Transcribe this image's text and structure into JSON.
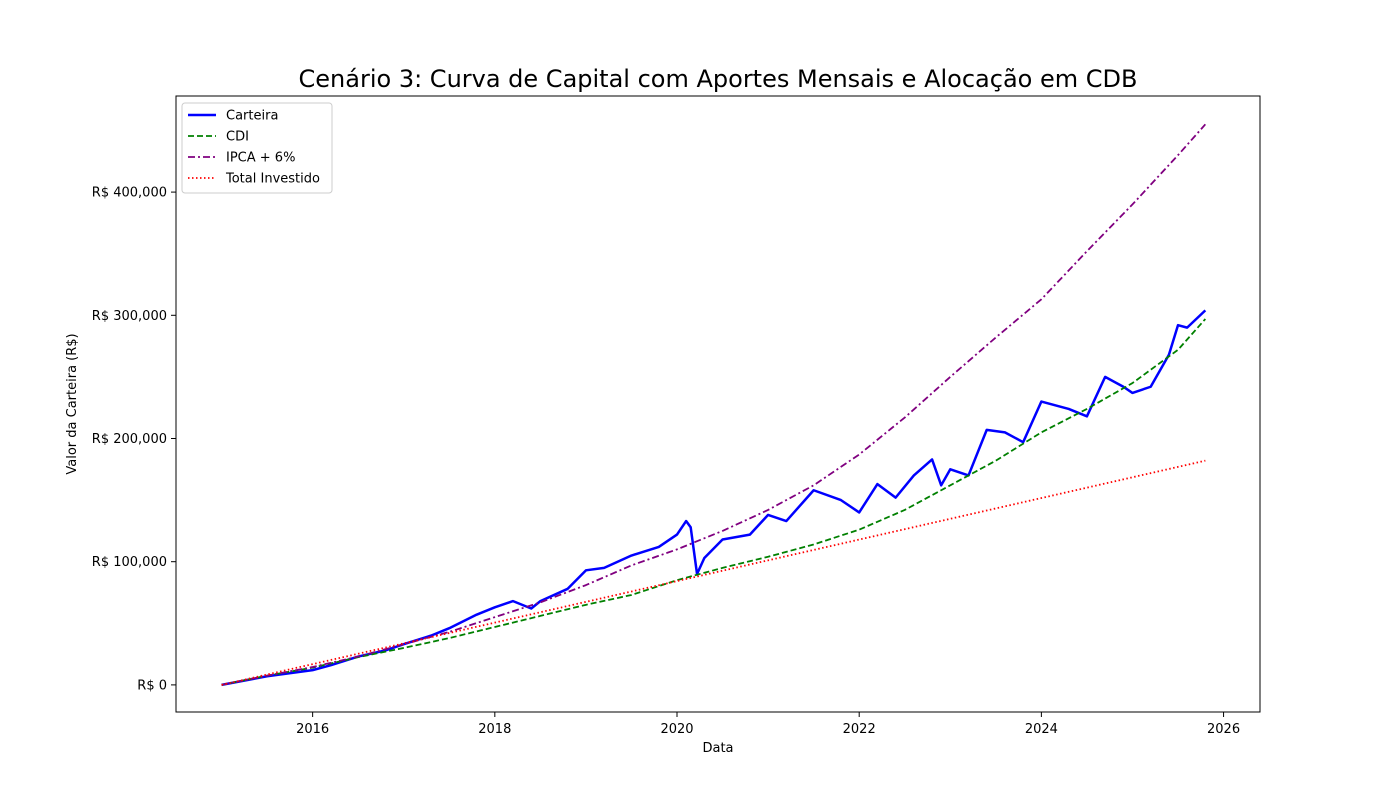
{
  "chart_data": {
    "type": "line",
    "title": "Cenário 3: Curva de Capital com Aportes Mensais e Alocação em CDB",
    "xlabel": "Data",
    "ylabel": "Valor da Carteira (R$)",
    "xlim": [
      2014.5,
      2026.4
    ],
    "ylim": [
      -22000,
      478000
    ],
    "x_ticks": [
      2016,
      2018,
      2020,
      2022,
      2024,
      2026
    ],
    "x_tick_labels": [
      "2016",
      "2018",
      "2020",
      "2022",
      "2024",
      "2026"
    ],
    "y_ticks": [
      0,
      100000,
      200000,
      300000,
      400000
    ],
    "y_tick_labels": [
      "R$ 0",
      "R$ 100,000",
      "R$ 200,000",
      "R$ 300,000",
      "R$ 400,000"
    ],
    "grid": false,
    "legend_position": "top-left",
    "series": [
      {
        "name": "Carteira",
        "color": "#0000ff",
        "style": "solid",
        "x": [
          2015.0,
          2015.5,
          2016.0,
          2016.2,
          2016.5,
          2016.8,
          2017.0,
          2017.3,
          2017.5,
          2017.8,
          2018.0,
          2018.2,
          2018.4,
          2018.5,
          2018.8,
          2019.0,
          2019.2,
          2019.5,
          2019.8,
          2020.0,
          2020.1,
          2020.15,
          2020.22,
          2020.3,
          2020.5,
          2020.8,
          2021.0,
          2021.2,
          2021.5,
          2021.8,
          2022.0,
          2022.2,
          2022.4,
          2022.6,
          2022.8,
          2022.9,
          2023.0,
          2023.2,
          2023.4,
          2023.6,
          2023.8,
          2024.0,
          2024.3,
          2024.5,
          2024.7,
          2024.9,
          2025.0,
          2025.2,
          2025.4,
          2025.5,
          2025.6,
          2025.8
        ],
        "values": [
          0,
          7000,
          12000,
          16000,
          23000,
          28000,
          33000,
          40000,
          46000,
          57000,
          63000,
          68000,
          62000,
          68000,
          78000,
          93000,
          95000,
          105000,
          112000,
          122000,
          133000,
          128000,
          90000,
          103000,
          118000,
          122000,
          138000,
          133000,
          158000,
          150000,
          140000,
          163000,
          152000,
          170000,
          183000,
          162000,
          175000,
          170000,
          207000,
          205000,
          197000,
          230000,
          224000,
          218000,
          250000,
          242000,
          237000,
          242000,
          268000,
          292000,
          290000,
          304000
        ]
      },
      {
        "name": "CDI",
        "color": "#008000",
        "style": "dashed",
        "x": [
          2015.0,
          2015.5,
          2016.0,
          2016.5,
          2017.0,
          2017.5,
          2018.0,
          2018.5,
          2019.0,
          2019.5,
          2020.0,
          2020.5,
          2021.0,
          2021.5,
          2022.0,
          2022.5,
          2023.0,
          2023.5,
          2024.0,
          2024.5,
          2025.0,
          2025.5,
          2025.8
        ],
        "values": [
          0,
          7500,
          14000,
          22500,
          30000,
          38000,
          47000,
          56000,
          65000,
          73000,
          85000,
          95000,
          104000,
          114000,
          126000,
          142000,
          162000,
          182000,
          205000,
          224000,
          245000,
          272000,
          297000
        ]
      },
      {
        "name": "IPCA + 6%",
        "color": "#800080",
        "style": "dashdot",
        "x": [
          2015.0,
          2015.5,
          2016.0,
          2016.5,
          2017.0,
          2017.5,
          2018.0,
          2018.5,
          2019.0,
          2019.5,
          2020.0,
          2020.5,
          2021.0,
          2021.5,
          2022.0,
          2022.5,
          2023.0,
          2023.5,
          2024.0,
          2024.5,
          2025.0,
          2025.5,
          2025.8
        ],
        "values": [
          0,
          7500,
          14500,
          23000,
          33000,
          43000,
          55000,
          67000,
          81000,
          97000,
          110000,
          125000,
          142000,
          162000,
          187000,
          217000,
          250000,
          282000,
          313000,
          352000,
          390000,
          430000,
          455000
        ]
      },
      {
        "name": "Total Investido",
        "color": "#ff0000",
        "style": "dotted",
        "x": [
          2015.0,
          2025.8
        ],
        "values": [
          0,
          182000
        ]
      }
    ]
  }
}
